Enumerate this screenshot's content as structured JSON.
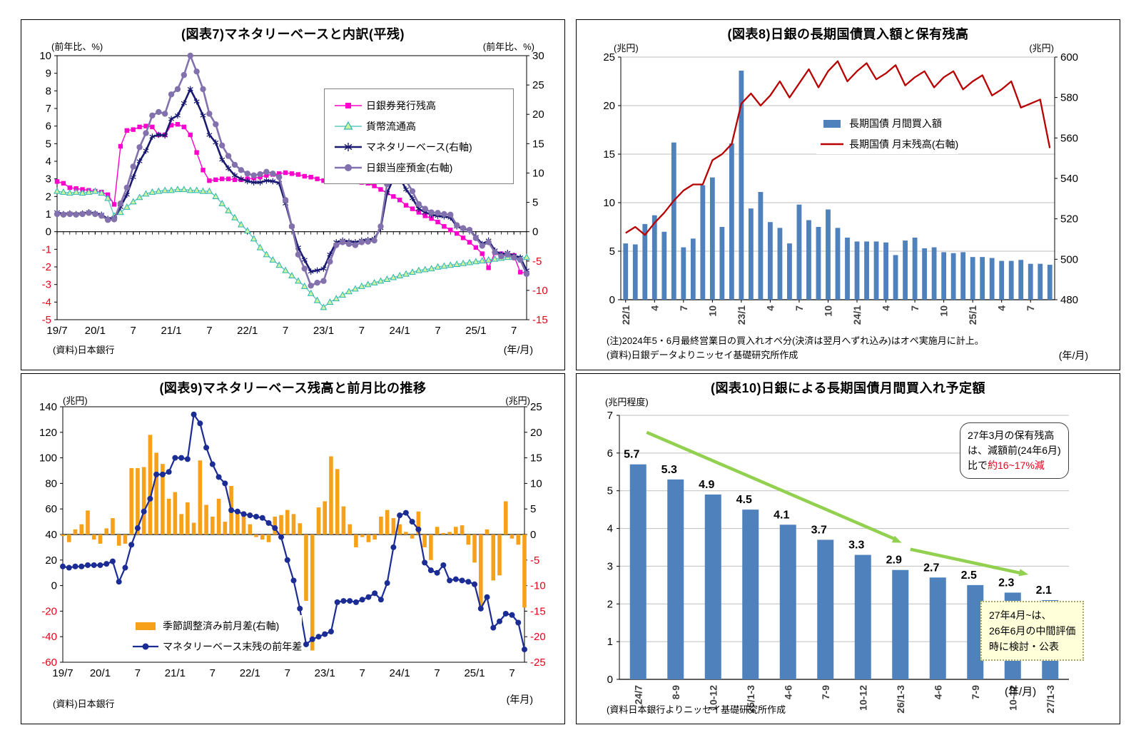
{
  "chart_data": [
    {
      "id": "figure7",
      "type": "line",
      "title": "(図表7)マネタリーベースと内訳(平残)",
      "source": "(資料)日本銀行",
      "x_unit": "(年/月)",
      "left_axis": {
        "unit": "(前年比、%)",
        "min": -5,
        "max": 10,
        "step": 1,
        "ticks": [
          "10",
          "9",
          "8",
          "7",
          "6",
          "5",
          "4",
          "3",
          "2",
          "1",
          "0",
          "-1",
          "-2",
          "-3",
          "-4",
          "-5"
        ]
      },
      "right_axis": {
        "unit": "(前年比、%)",
        "min": -15,
        "max": 30,
        "step": 5,
        "ticks": [
          "30",
          "25",
          "20",
          "15",
          "10",
          "5",
          "0",
          "-5",
          "-10",
          "-15"
        ]
      },
      "x": {
        "months": 75,
        "first": "2019/7",
        "last": "2025/9",
        "tick_labels": [
          "19/7",
          "20/1",
          "7",
          "21/1",
          "7",
          "22/1",
          "7",
          "23/1",
          "7",
          "24/1",
          "7",
          "25/1",
          "7"
        ]
      },
      "series": [
        {
          "name": "日銀券発行残高",
          "axis": "left",
          "color": "#FF00CC",
          "marker": "square",
          "values": [
            2.85,
            2.75,
            2.5,
            2.45,
            2.4,
            2.35,
            2.3,
            2.25,
            2.1,
            1.55,
            4.85,
            5.75,
            5.8,
            5.95,
            6.0,
            5.95,
            5.5,
            5.5,
            6.05,
            6.1,
            5.95,
            5.5,
            4.5,
            3.5,
            2.9,
            2.95,
            3.0,
            3.0,
            2.95,
            2.95,
            3.0,
            3.05,
            3.1,
            3.2,
            3.25,
            3.3,
            3.35,
            3.3,
            3.25,
            3.15,
            3.1,
            3.0,
            2.9,
            2.95,
            3.0,
            3.0,
            2.9,
            2.85,
            2.8,
            2.75,
            2.6,
            2.4,
            2.2,
            2.0,
            1.8,
            1.5,
            1.3,
            1.1,
            0.9,
            0.75,
            0.55,
            0.3,
            0.1,
            -0.1,
            -0.35,
            -0.6,
            -0.9,
            -1.25,
            -2.05,
            -1.2,
            -1.25,
            -1.3,
            -1.35,
            -2.3,
            -2.35
          ]
        },
        {
          "name": "貨幣流通高",
          "axis": "left",
          "color": "#5FC9C0",
          "marker": "triangle",
          "values": [
            2.3,
            2.25,
            2.2,
            2.25,
            2.2,
            2.25,
            2.3,
            2.2,
            1.9,
            0.9,
            1.1,
            1.4,
            1.7,
            1.95,
            2.15,
            2.25,
            2.3,
            2.35,
            2.35,
            2.4,
            2.4,
            2.35,
            2.35,
            2.3,
            2.3,
            2.0,
            1.6,
            1.2,
            0.8,
            0.4,
            0.05,
            -0.4,
            -0.9,
            -1.3,
            -1.6,
            -1.9,
            -2.2,
            -2.5,
            -2.8,
            -3.1,
            -3.5,
            -3.9,
            -4.3,
            -4.0,
            -3.8,
            -3.6,
            -3.4,
            -3.25,
            -3.1,
            -3.0,
            -2.9,
            -2.8,
            -2.7,
            -2.6,
            -2.5,
            -2.4,
            -2.3,
            -2.2,
            -2.15,
            -2.1,
            -2.0,
            -1.95,
            -1.9,
            -1.85,
            -1.8,
            -1.75,
            -1.7,
            -1.65,
            -1.6,
            -1.55,
            -1.5,
            -1.45,
            -1.45,
            -1.5,
            -1.45
          ]
        },
        {
          "name": "マネタリーベース(右軸)",
          "axis": "right",
          "color": "#191970",
          "marker": "asterisk",
          "values": [
            3.3,
            3.0,
            3.1,
            3.0,
            3.1,
            3.3,
            3.1,
            2.9,
            2.2,
            2.3,
            4.2,
            6.3,
            9.3,
            12.0,
            13.8,
            16.2,
            16.5,
            16.4,
            19.2,
            19.8,
            21.9,
            24.3,
            22.2,
            19.8,
            16.5,
            15.2,
            12.3,
            10.8,
            9.6,
            9.0,
            8.6,
            8.4,
            8.4,
            8.7,
            8.6,
            8.3,
            4.8,
            0.9,
            -2.7,
            -4.8,
            -6.8,
            -6.6,
            -6.3,
            -3.9,
            -1.8,
            -1.5,
            -1.7,
            -1.8,
            -1.5,
            -1.4,
            -1.2,
            0.6,
            6.6,
            9.0,
            9.2,
            7.2,
            5.7,
            3.9,
            3.3,
            2.9,
            2.7,
            2.6,
            2.4,
            0.9,
            0.5,
            0.3,
            -0.9,
            -2.1,
            -1.5,
            -3.2,
            -3.9,
            -3.6,
            -4.1,
            -4.4,
            -6.6
          ]
        },
        {
          "name": "日銀当座預金(右軸)",
          "axis": "right",
          "color": "#8271AD",
          "marker": "circle",
          "values": [
            3.0,
            2.9,
            3.0,
            2.9,
            3.0,
            3.2,
            3.0,
            2.7,
            2.0,
            2.1,
            4.8,
            7.5,
            11.1,
            14.4,
            16.8,
            19.8,
            20.4,
            20.1,
            23.4,
            24.3,
            26.7,
            30.0,
            27.3,
            24.3,
            20.1,
            18.3,
            14.7,
            12.9,
            11.4,
            10.5,
            9.9,
            9.6,
            9.8,
            10.2,
            9.9,
            9.3,
            5.4,
            0.9,
            -3.9,
            -6.3,
            -9.2,
            -8.7,
            -8.4,
            -5.1,
            -2.3,
            -1.8,
            -2.1,
            -2.3,
            -1.8,
            -1.7,
            -1.5,
            0.9,
            8.1,
            11.3,
            11.1,
            8.7,
            6.9,
            4.7,
            3.9,
            3.3,
            3.2,
            3.0,
            2.9,
            1.1,
            0.6,
            0.3,
            -1.1,
            -2.4,
            -1.8,
            -3.5,
            -4.2,
            -3.9,
            -4.4,
            -4.8,
            -7.2
          ]
        }
      ]
    },
    {
      "id": "figure8",
      "type": "bar+line",
      "title": "(図表8)日銀の長期国債買入額と保有残高",
      "note1": "(注)2024年5・6月最終営業日の買入れオペ分(決済は翌月へずれ込み)はオペ実施月に計上。",
      "note2": "(資料)日銀データよりニッセイ基礎研究所作成",
      "x_unit": "(年/月)",
      "left_axis": {
        "unit": "(兆円)",
        "min": 0,
        "max": 25,
        "step": 5,
        "ticks": [
          "25",
          "20",
          "15",
          "10",
          "5",
          "0"
        ]
      },
      "right_axis": {
        "unit": "(兆円)",
        "min": 480,
        "max": 600,
        "step": 20,
        "ticks": [
          "600",
          "580",
          "560",
          "540",
          "520",
          "500",
          "480"
        ]
      },
      "x": {
        "months": 45,
        "first": "2022/1",
        "last": "2025/9",
        "tick_labels": [
          "22/1",
          "4",
          "7",
          "10",
          "23/1",
          "4",
          "7",
          "10",
          "24/1",
          "4",
          "7",
          "10",
          "25/1",
          "4",
          "7"
        ]
      },
      "series": [
        {
          "name": "長期国債 月間買入額",
          "axis": "left",
          "color": "#4F81BD",
          "kind": "bar",
          "values": [
            5.8,
            5.7,
            7.8,
            8.7,
            7.0,
            16.2,
            5.4,
            6.3,
            11.8,
            12.6,
            7.5,
            16.1,
            23.6,
            9.4,
            11.1,
            8.0,
            7.4,
            5.8,
            9.8,
            8.2,
            7.5,
            9.3,
            7.4,
            6.4,
            6.0,
            6.0,
            6.0,
            5.9,
            4.6,
            6.1,
            6.4,
            5.3,
            5.4,
            4.9,
            4.8,
            4.9,
            4.4,
            4.4,
            4.3,
            4.0,
            4.0,
            4.1,
            3.7,
            3.7,
            3.6
          ]
        },
        {
          "name": "長期国債 月末残高(右軸)",
          "axis": "right",
          "color": "#B80000",
          "kind": "line",
          "values": [
            513,
            516,
            512,
            518,
            523,
            529,
            534,
            537,
            537,
            549,
            552,
            557,
            577,
            582,
            576,
            581,
            588,
            580,
            587,
            594,
            585,
            593,
            598,
            588,
            593,
            597,
            589,
            592,
            596,
            586,
            590,
            593,
            585,
            590,
            593,
            584,
            588,
            591,
            581,
            584,
            588,
            575,
            577,
            579,
            555
          ]
        }
      ]
    },
    {
      "id": "figure9",
      "type": "bar+line",
      "title": "(図表9)マネタリーベース残高と前月比の推移",
      "source": "(資料)日本銀行",
      "x_unit": "(年月)",
      "left_axis": {
        "unit": "(兆円)",
        "min": -60,
        "max": 140,
        "step": 20,
        "ticks": [
          "140",
          "120",
          "100",
          "80",
          "60",
          "40",
          "20",
          "0",
          "-20",
          "-40",
          "-60"
        ]
      },
      "right_axis": {
        "unit": "(兆円)",
        "min": -25,
        "max": 25,
        "step": 5,
        "ticks": [
          "25",
          "20",
          "15",
          "10",
          "5",
          "0",
          "-5",
          "-10",
          "-15",
          "-20",
          "-25"
        ]
      },
      "x": {
        "months": 75,
        "first": "2019/7",
        "last": "2025/9",
        "tick_labels": [
          "19/7",
          "20/1",
          "7",
          "21/1",
          "7",
          "22/1",
          "7",
          "23/1",
          "7",
          "24/1",
          "7",
          "25/1",
          "7"
        ]
      },
      "series": [
        {
          "name": "季節調整済み前月差(右軸)",
          "axis": "right",
          "color": "#F7A11A",
          "kind": "bar",
          "values": [
            -0.3,
            -1.5,
            1,
            2,
            4.7,
            -1,
            -1.8,
            1.2,
            3.2,
            -2.2,
            -1.8,
            13,
            13,
            13.2,
            19.5,
            16,
            13.8,
            7,
            8.3,
            4,
            6.3,
            2.3,
            14.5,
            5.8,
            3.5,
            7,
            2.5,
            9.5,
            4,
            4.5,
            2,
            -0.5,
            -1,
            -1.5,
            3.5,
            3.8,
            4.8,
            4,
            2.2,
            -13,
            -22.7,
            5.3,
            6.5,
            15.3,
            12.8,
            5.5,
            2,
            -2.5,
            -0.5,
            -1.5,
            -1,
            3.5,
            4.8,
            3.2,
            2,
            0.5,
            -0.8,
            4.5,
            -2.5,
            -5,
            1.5,
            0.3,
            0.5,
            1.5,
            1.8,
            -2,
            -5.5,
            -14.5,
            1,
            -9,
            -8,
            6.5,
            -0.8,
            -2,
            -14.3
          ]
        },
        {
          "name": "マネタリーベース末残の前年差",
          "axis": "left",
          "color": "#1B2C94",
          "kind": "line",
          "marker": "circle",
          "values": [
            15,
            14,
            15,
            15,
            16,
            16,
            16,
            17,
            19,
            3,
            14,
            32,
            45,
            58,
            68,
            87,
            87,
            89,
            100,
            100,
            99,
            134,
            127,
            108,
            95,
            85,
            80,
            59,
            58,
            56,
            55,
            54,
            53,
            49,
            45,
            38,
            20,
            4,
            -18,
            -46,
            -42,
            -40,
            -38,
            -36,
            -13,
            -12,
            -12,
            -13,
            -11,
            -9,
            -6,
            -11,
            2,
            30,
            55,
            57,
            50,
            44,
            18,
            12,
            10,
            16,
            4,
            5,
            4,
            3,
            1,
            -18,
            -9,
            -33,
            -28,
            -22,
            -23,
            -29,
            -50
          ]
        }
      ]
    },
    {
      "id": "figure10",
      "type": "bar",
      "title": "(図表10)日銀による長期国債月間買入れ予定額",
      "source": "(資料日本銀行よりニッセイ基礎研究所作成",
      "x_unit": "(年/月)",
      "left_axis": {
        "unit": "(兆円程度)",
        "min": 0,
        "max": 7,
        "step": 1,
        "ticks": [
          "7",
          "6",
          "5",
          "4",
          "3",
          "2",
          "1",
          "0"
        ]
      },
      "categories": [
        "24/7",
        "8-9",
        "10-12",
        "25/1-3",
        "4-6",
        "7-9",
        "10-12",
        "26/1-3",
        "4-6",
        "7-9",
        "10-12",
        "27/1-3"
      ],
      "values": [
        5.7,
        5.3,
        4.9,
        4.5,
        4.1,
        3.7,
        3.3,
        2.9,
        2.7,
        2.5,
        2.3,
        2.1
      ],
      "value_labels": [
        "5.7",
        "5.3",
        "4.9",
        "4.5",
        "4.1",
        "3.7",
        "3.3",
        "2.9",
        "2.7",
        "2.5",
        "2.3",
        "2.1"
      ],
      "bar_color": "#4F81BD",
      "arrow_color": "#92D050",
      "callout1": {
        "line1": "27年3月の保有残高",
        "line2": "は、減額前(24年6月)",
        "line3_prefix": "比で",
        "line3_red": "約16~17%減"
      },
      "callout2": {
        "line1": "27年4月~は、",
        "line2": "26年6月の中間評価",
        "line3": "時に検討・公表"
      }
    }
  ]
}
